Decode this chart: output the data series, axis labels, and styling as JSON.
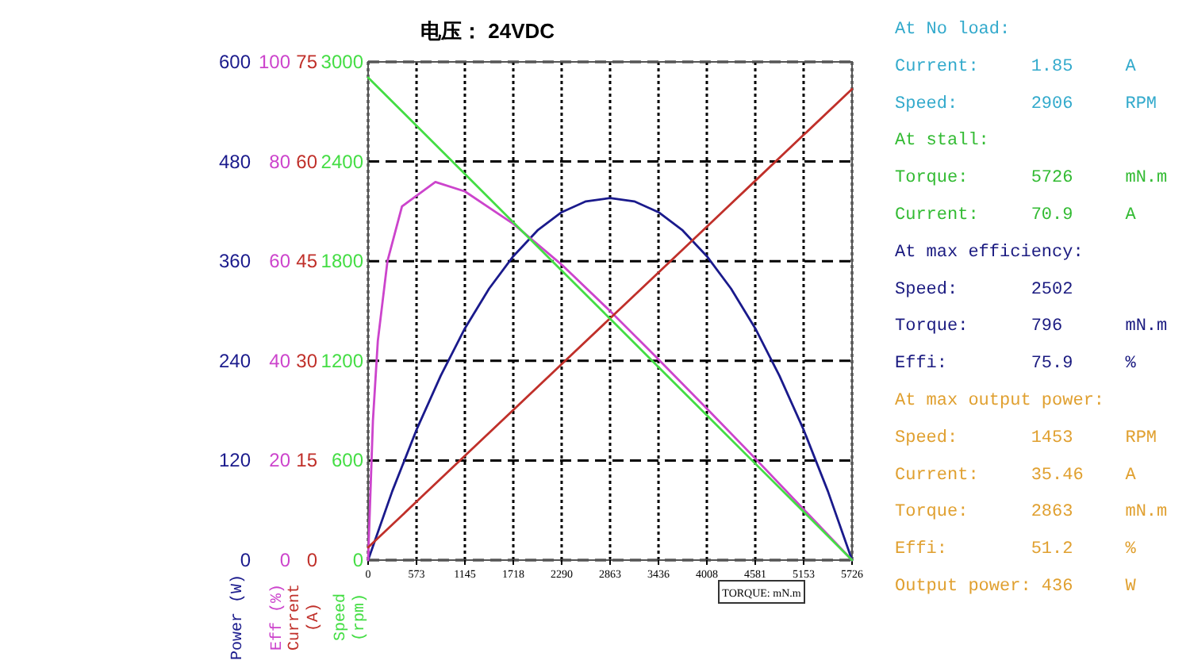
{
  "chart_data": [
    {
      "type": "line",
      "title": "电压： 24VDC",
      "xlabel": "TORQUE: mN.m",
      "ylabel": "Power (W)",
      "xlim": [
        0,
        5726
      ],
      "xticks": [
        0,
        573,
        1145,
        1718,
        2290,
        2863,
        3436,
        4008,
        4581,
        5153,
        5726
      ],
      "ylim": [
        0,
        600
      ],
      "yticks": [
        0,
        120,
        240,
        360,
        480,
        600
      ],
      "grid": true,
      "line_style": "solid",
      "series": [
        {
          "color": "#1a1a8c",
          "x": [
            0,
            286,
            573,
            859,
            1145,
            1432,
            1718,
            2004,
            2290,
            2577,
            2863,
            3149,
            3436,
            3722,
            4008,
            4294,
            4581,
            4867,
            5153,
            5440,
            5726
          ],
          "values": [
            0,
            83,
            157,
            222,
            279,
            327,
            366,
            397,
            419,
            432,
            436,
            432,
            419,
            397,
            366,
            327,
            279,
            222,
            157,
            83,
            0
          ]
        }
      ]
    },
    {
      "type": "line",
      "ylabel": "Eff (%)",
      "xlim": [
        0,
        5726
      ],
      "ylim": [
        0,
        100
      ],
      "yticks": [
        0,
        20,
        40,
        60,
        80,
        100
      ],
      "tick_labels": "y",
      "line_style": "solid",
      "series": [
        {
          "color": "#cc44cc",
          "x": [
            0,
            57,
            115,
            229,
            401,
            796,
            1145,
            1718,
            2290,
            2863,
            3436,
            4008,
            4581,
            5153,
            5726
          ],
          "values": [
            0,
            28,
            44,
            60,
            71,
            75.9,
            74,
            67.5,
            59.3,
            50,
            40.3,
            30.4,
            20.4,
            10.2,
            0
          ]
        }
      ]
    },
    {
      "type": "line",
      "ylabel": "Current (A)",
      "xlim": [
        0,
        5726
      ],
      "ylim": [
        0,
        75
      ],
      "yticks": [
        0,
        15,
        30,
        45,
        60,
        75
      ],
      "tick_labels": "y",
      "line_style": "solid",
      "series": [
        {
          "color": "#c0302a",
          "x": [
            0,
            573,
            1145,
            1718,
            2290,
            2863,
            3436,
            4008,
            4581,
            5153,
            5726
          ],
          "values": [
            1.9,
            8.8,
            15.7,
            22.6,
            29.5,
            36.4,
            43.3,
            50.2,
            57.1,
            64.0,
            70.9
          ]
        }
      ]
    },
    {
      "type": "line",
      "ylabel": "Speed (rpm)",
      "xlim": [
        0,
        5726
      ],
      "ylim": [
        0,
        3000
      ],
      "yticks": [
        0,
        600,
        1200,
        1800,
        2400,
        3000
      ],
      "tick_labels": "y",
      "line_style": "solid",
      "series": [
        {
          "color": "#44dd44",
          "x": [
            0,
            573,
            1145,
            1718,
            2290,
            2863,
            3436,
            4008,
            4581,
            5153,
            5726
          ],
          "values": [
            2906,
            2615,
            2325,
            2034,
            1744,
            1453,
            1162,
            872,
            581,
            291,
            0
          ]
        }
      ]
    },
    {
      "type": "other",
      "annotations": [
        "At No load:",
        "Current:     1.85     A",
        "Speed:       2906     RPM",
        "At stall:",
        "Torque:      5726     mN.m",
        "Current:     70.9     A",
        "At max efficiency:",
        "Speed:       2502",
        "Torque:      796      mN.m",
        "Effi:        75.9     %",
        "At max output power:",
        "Speed:       1453     RPM",
        "Current:     35.46    A",
        "Torque:      2863     mN.m",
        "Effi:        51.2     %",
        "Output power: 436     W"
      ],
      "colors": [
        "#33aacc",
        "#33aacc",
        "#33aacc",
        "#33bb33",
        "#33bb33",
        "#33bb33",
        "#1a1a80",
        "#1a1a80",
        "#1a1a80",
        "#1a1a80",
        "#e0a030",
        "#e0a030",
        "#e0a030",
        "#e0a030",
        "#e0a030",
        "#e0a030"
      ]
    }
  ]
}
